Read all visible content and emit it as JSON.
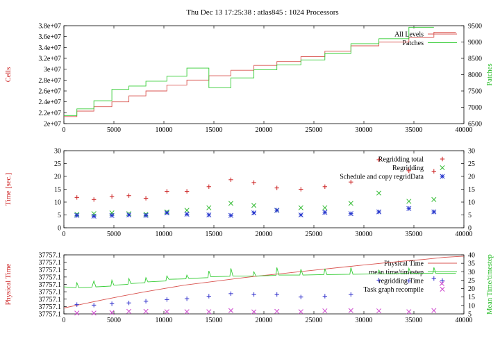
{
  "figure": {
    "title": "Thu Dec 13 17:25:38 : atlas845 : 1024 Processors"
  },
  "chart_data": [
    {
      "type": "line",
      "ylabel": "Cells",
      "y2label": "Patches",
      "ylabel_color": "#cc2222",
      "y2label_color": "#22bb22",
      "xlim": [
        0,
        40000
      ],
      "ylim": [
        20000000,
        38000000
      ],
      "y2lim": [
        6500,
        9500
      ],
      "xticks": [
        "0",
        "5000",
        "10000",
        "15000",
        "20000",
        "25000",
        "30000",
        "35000",
        "40000"
      ],
      "yticks": [
        "2e+07",
        "2.2e+07",
        "2.4e+07",
        "2.6e+07",
        "2.8e+07",
        "3e+07",
        "3.2e+07",
        "3.4e+07",
        "3.6e+07",
        "3.8e+07"
      ],
      "y2ticks": [
        "6500",
        "7000",
        "7500",
        "8000",
        "8500",
        "9000",
        "9500"
      ],
      "legend_position": "top-right",
      "series": [
        {
          "name": "All Levels",
          "axis": "y",
          "color": "#d9534f",
          "step": true,
          "points": [
            [
              0,
              21300000
            ],
            [
              1300,
              21300000
            ],
            [
              1300,
              22300000
            ],
            [
              3000,
              22300000
            ],
            [
              3000,
              23100000
            ],
            [
              4800,
              23100000
            ],
            [
              4800,
              24000000
            ],
            [
              6500,
              24000000
            ],
            [
              6500,
              25100000
            ],
            [
              8200,
              25100000
            ],
            [
              8200,
              26000000
            ],
            [
              10300,
              26000000
            ],
            [
              10300,
              27100000
            ],
            [
              12300,
              27100000
            ],
            [
              12300,
              28000000
            ],
            [
              14500,
              28000000
            ],
            [
              14500,
              28800000
            ],
            [
              16700,
              28800000
            ],
            [
              16700,
              29800000
            ],
            [
              19000,
              29800000
            ],
            [
              19000,
              30700000
            ],
            [
              21300,
              30700000
            ],
            [
              21300,
              31400000
            ],
            [
              23700,
              31400000
            ],
            [
              23700,
              32300000
            ],
            [
              26100,
              32300000
            ],
            [
              26100,
              33300000
            ],
            [
              28700,
              33300000
            ],
            [
              28700,
              34300000
            ],
            [
              31500,
              34300000
            ],
            [
              31500,
              35000000
            ],
            [
              34500,
              35000000
            ],
            [
              34500,
              35900000
            ],
            [
              37000,
              35900000
            ],
            [
              37000,
              36800000
            ],
            [
              39200,
              36800000
            ]
          ]
        },
        {
          "name": "Patches",
          "axis": "y2",
          "color": "#33cc33",
          "step": true,
          "points": [
            [
              0,
              6750
            ],
            [
              1300,
              6750
            ],
            [
              1300,
              6950
            ],
            [
              3000,
              6950
            ],
            [
              3000,
              7200
            ],
            [
              4800,
              7200
            ],
            [
              4800,
              7550
            ],
            [
              6500,
              7550
            ],
            [
              6500,
              7650
            ],
            [
              8200,
              7650
            ],
            [
              8200,
              7800
            ],
            [
              10300,
              7800
            ],
            [
              10300,
              7950
            ],
            [
              12300,
              7950
            ],
            [
              12300,
              8200
            ],
            [
              14500,
              8200
            ],
            [
              14500,
              7600
            ],
            [
              16700,
              7600
            ],
            [
              16700,
              7900
            ],
            [
              19000,
              7900
            ],
            [
              19000,
              8150
            ],
            [
              21300,
              8150
            ],
            [
              21300,
              8300
            ],
            [
              23700,
              8300
            ],
            [
              23700,
              8450
            ],
            [
              26100,
              8450
            ],
            [
              26100,
              8650
            ],
            [
              28700,
              8650
            ],
            [
              28700,
              8950
            ],
            [
              31500,
              8950
            ],
            [
              31500,
              9100
            ],
            [
              34500,
              9100
            ],
            [
              34500,
              9450
            ],
            [
              37000,
              9450
            ]
          ]
        }
      ]
    },
    {
      "type": "scatter",
      "ylabel": "Time [sec.]",
      "ylabel_color": "#cc2222",
      "xlim": [
        0,
        40000
      ],
      "ylim": [
        0,
        30
      ],
      "y2lim": [
        0,
        30
      ],
      "xticks": [
        "0",
        "5000",
        "10000",
        "15000",
        "20000",
        "25000",
        "30000",
        "35000",
        "40000"
      ],
      "yticks": [
        "0",
        "5",
        "10",
        "15",
        "20",
        "25",
        "30"
      ],
      "y2ticks": [
        "0",
        "5",
        "10",
        "15",
        "20",
        "25",
        "30"
      ],
      "legend_position": "top-right",
      "series": [
        {
          "name": "Regridding total",
          "marker": "plus",
          "color": "#cc2222",
          "points": [
            [
              1300,
              11.8
            ],
            [
              3000,
              11
            ],
            [
              4800,
              12.2
            ],
            [
              6500,
              12.5
            ],
            [
              8200,
              11.5
            ],
            [
              10300,
              14.2
            ],
            [
              12300,
              14.2
            ],
            [
              14500,
              16
            ],
            [
              16700,
              18.7
            ],
            [
              19000,
              17.6
            ],
            [
              21300,
              15.5
            ],
            [
              23700,
              15
            ],
            [
              26100,
              16
            ],
            [
              28700,
              17.8
            ],
            [
              31500,
              26.5
            ],
            [
              34500,
              22.2
            ],
            [
              37000,
              22
            ]
          ]
        },
        {
          "name": "Regridding",
          "marker": "cross",
          "color": "#33bb33",
          "points": [
            [
              1300,
              5.3
            ],
            [
              3000,
              5.5
            ],
            [
              4800,
              5.8
            ],
            [
              6500,
              5.5
            ],
            [
              8200,
              5.3
            ],
            [
              10300,
              6.2
            ],
            [
              12300,
              6.8
            ],
            [
              14500,
              7.8
            ],
            [
              16700,
              9.5
            ],
            [
              19000,
              8.7
            ],
            [
              21300,
              6.8
            ],
            [
              23700,
              7.8
            ],
            [
              26100,
              7.8
            ],
            [
              28700,
              9.5
            ],
            [
              31500,
              13.5
            ],
            [
              34500,
              10.3
            ],
            [
              37000,
              11
            ]
          ]
        },
        {
          "name": "Schedule and copy regridData",
          "marker": "star",
          "color": "#2233cc",
          "points": [
            [
              1300,
              4.8
            ],
            [
              3000,
              4.5
            ],
            [
              4800,
              4.8
            ],
            [
              6500,
              5
            ],
            [
              8200,
              4.8
            ],
            [
              10300,
              5.8
            ],
            [
              12300,
              5.3
            ],
            [
              14500,
              5
            ],
            [
              16700,
              4.8
            ],
            [
              19000,
              5.8
            ],
            [
              21300,
              6.8
            ],
            [
              23700,
              5
            ],
            [
              26100,
              6
            ],
            [
              28700,
              5.5
            ],
            [
              31500,
              6.2
            ],
            [
              34500,
              7.5
            ],
            [
              37000,
              6.2
            ]
          ]
        }
      ]
    },
    {
      "type": "line",
      "ylabel": "Physical Time",
      "y2label": "Mean Time/timestep",
      "ylabel_color": "#cc2222",
      "y2label_color": "#22bb22",
      "xlim": [
        0,
        40000
      ],
      "y2lim": [
        5,
        40
      ],
      "xticks": [
        "0",
        "5000",
        "10000",
        "15000",
        "20000",
        "25000",
        "30000",
        "35000",
        "40000"
      ],
      "yticks": [
        "37757.1",
        "37757.1",
        "37757.1",
        "37757.1",
        "37757.1",
        "37757.1",
        "37757.1",
        "37757.1",
        "37757.1"
      ],
      "y2ticks": [
        "5",
        "10",
        "15",
        "20",
        "25",
        "30",
        "35",
        "40"
      ],
      "legend_position": "top-right",
      "series": [
        {
          "name": "Physical Time",
          "axis": "y2",
          "color": "#d9534f",
          "points": [
            [
              0,
              8.5
            ],
            [
              2000,
              11
            ],
            [
              4000,
              13.5
            ],
            [
              6000,
              15.8
            ],
            [
              8000,
              18
            ],
            [
              10000,
              20
            ],
            [
              12000,
              22
            ],
            [
              14000,
              23.5
            ],
            [
              16000,
              25
            ],
            [
              18000,
              26.5
            ],
            [
              20000,
              27.8
            ],
            [
              22000,
              29
            ],
            [
              24000,
              30.3
            ],
            [
              26000,
              31.5
            ],
            [
              28000,
              32.8
            ],
            [
              30000,
              34
            ],
            [
              32000,
              35.2
            ],
            [
              34000,
              36.3
            ],
            [
              36000,
              37.3
            ],
            [
              38000,
              38.5
            ],
            [
              40000,
              39.2
            ]
          ]
        },
        {
          "name": "mean time/timestep",
          "axis": "y2",
          "color": "#33cc33",
          "points": [
            [
              0,
              21
            ],
            [
              1200,
              20.5
            ],
            [
              1300,
              23.5
            ],
            [
              1500,
              20.5
            ],
            [
              2800,
              20.8
            ],
            [
              3000,
              24.5
            ],
            [
              3200,
              21
            ],
            [
              4700,
              21.5
            ],
            [
              4800,
              25
            ],
            [
              5000,
              22
            ],
            [
              6400,
              22.5
            ],
            [
              6500,
              26
            ],
            [
              6700,
              23
            ],
            [
              8100,
              23.5
            ],
            [
              8200,
              26.5
            ],
            [
              8400,
              24
            ],
            [
              10200,
              24.5
            ],
            [
              10300,
              27.5
            ],
            [
              10500,
              25.5
            ],
            [
              12200,
              25.8
            ],
            [
              12300,
              28
            ],
            [
              12500,
              26
            ],
            [
              14400,
              26.5
            ],
            [
              14500,
              30.5
            ],
            [
              14700,
              27
            ],
            [
              16600,
              27.3
            ],
            [
              16700,
              32
            ],
            [
              16900,
              27.5
            ],
            [
              18900,
              27.5
            ],
            [
              19000,
              30
            ],
            [
              19200,
              27.5
            ],
            [
              21200,
              27.8
            ],
            [
              21300,
              32.5
            ],
            [
              21500,
              28
            ],
            [
              23600,
              28
            ],
            [
              23700,
              31.5
            ],
            [
              23900,
              28
            ],
            [
              26000,
              28.3
            ],
            [
              26100,
              31.8
            ],
            [
              26300,
              28.3
            ],
            [
              28600,
              28.5
            ],
            [
              28700,
              32.5
            ],
            [
              28900,
              28.5
            ],
            [
              31400,
              28.7
            ],
            [
              31500,
              31
            ],
            [
              31700,
              28.7
            ],
            [
              34400,
              29
            ],
            [
              34500,
              32
            ],
            [
              34700,
              29
            ],
            [
              36900,
              29
            ],
            [
              37000,
              32.5
            ],
            [
              37200,
              29
            ],
            [
              39200,
              29
            ]
          ]
        },
        {
          "name": "regridding Time",
          "axis": "y2",
          "marker": "plus",
          "color": "#3333cc",
          "points": [
            [
              1300,
              10.5
            ],
            [
              3000,
              10.2
            ],
            [
              4800,
              11
            ],
            [
              6500,
              11.5
            ],
            [
              8200,
              12.5
            ],
            [
              10300,
              13.5
            ],
            [
              12300,
              14
            ],
            [
              14500,
              15.5
            ],
            [
              16700,
              17
            ],
            [
              19000,
              16.5
            ],
            [
              21300,
              16.5
            ],
            [
              23700,
              15
            ],
            [
              26100,
              15.5
            ],
            [
              28700,
              16.5
            ],
            [
              31500,
              25
            ],
            [
              34500,
              24.5
            ],
            [
              37000,
              26
            ]
          ]
        },
        {
          "name": "Task graph recompile",
          "axis": "y2",
          "marker": "cross",
          "color": "#cc44cc",
          "points": [
            [
              1300,
              5.5
            ],
            [
              3000,
              5.5
            ],
            [
              4800,
              5.8
            ],
            [
              6500,
              6.5
            ],
            [
              8200,
              6.5
            ],
            [
              10300,
              6.3
            ],
            [
              12300,
              6.3
            ],
            [
              14500,
              6.3
            ],
            [
              16700,
              7
            ],
            [
              19000,
              6.2
            ],
            [
              21300,
              6.5
            ],
            [
              23700,
              6.3
            ],
            [
              26100,
              6.8
            ],
            [
              28700,
              7
            ],
            [
              31500,
              6.8
            ],
            [
              34500,
              6.3
            ],
            [
              37000,
              7
            ],
            [
              37800,
              23
            ]
          ]
        }
      ]
    }
  ]
}
